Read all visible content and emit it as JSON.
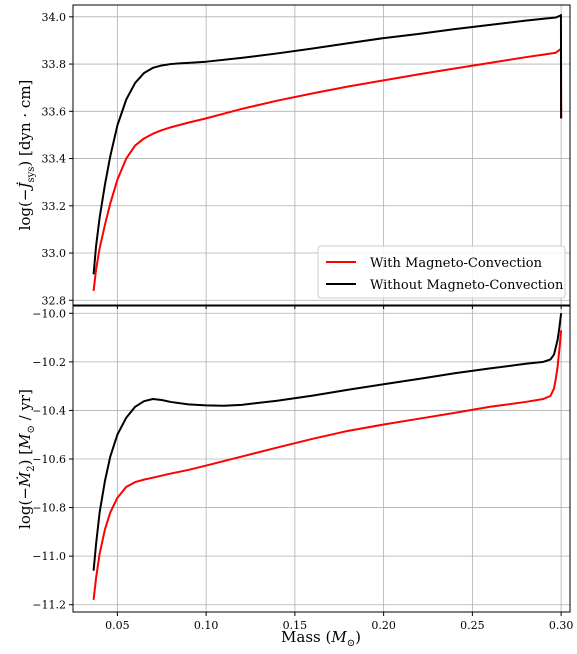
{
  "chart_data": [
    {
      "type": "line",
      "ylabel": "log(−J̇sys) [dyn·cm]",
      "ylabel_parts": {
        "pre": "log(−",
        "sym": "J̇",
        "sub": "sys",
        "post": ")  [dyn · cm]"
      },
      "xlim": [
        0.025,
        0.305
      ],
      "ylim": [
        32.78,
        34.05
      ],
      "yticks": [
        "32.8",
        "33.0",
        "33.2",
        "33.4",
        "33.6",
        "33.8",
        "34.0"
      ],
      "ytick_values": [
        32.8,
        33.0,
        33.2,
        33.4,
        33.6,
        33.8,
        34.0
      ],
      "grid": true,
      "legend_position": "lower-right",
      "series": [
        {
          "name": "With Magneto-Convection",
          "color": "#ff0000",
          "x": [
            0.0366,
            0.038,
            0.04,
            0.043,
            0.046,
            0.05,
            0.055,
            0.06,
            0.065,
            0.07,
            0.075,
            0.08,
            0.09,
            0.1,
            0.12,
            0.14,
            0.16,
            0.18,
            0.2,
            0.22,
            0.24,
            0.26,
            0.28,
            0.29,
            0.297,
            0.2995,
            0.2999,
            0.3
          ],
          "y": [
            32.84,
            32.93,
            33.02,
            33.12,
            33.21,
            33.31,
            33.4,
            33.455,
            33.485,
            33.505,
            33.52,
            33.532,
            33.552,
            33.57,
            33.61,
            33.645,
            33.676,
            33.705,
            33.731,
            33.757,
            33.781,
            33.805,
            33.829,
            33.84,
            33.848,
            33.862,
            33.865,
            33.57
          ]
        },
        {
          "name": "Without Magneto-Convection",
          "color": "#000000",
          "x": [
            0.0366,
            0.038,
            0.04,
            0.043,
            0.046,
            0.05,
            0.055,
            0.06,
            0.065,
            0.07,
            0.075,
            0.08,
            0.085,
            0.09,
            0.1,
            0.12,
            0.14,
            0.16,
            0.18,
            0.2,
            0.22,
            0.24,
            0.26,
            0.28,
            0.29,
            0.297,
            0.2995,
            0.2999,
            0.3
          ],
          "y": [
            32.91,
            33.03,
            33.15,
            33.29,
            33.41,
            33.54,
            33.65,
            33.72,
            33.762,
            33.784,
            33.794,
            33.8,
            33.803,
            33.805,
            33.81,
            33.826,
            33.845,
            33.866,
            33.888,
            33.91,
            33.928,
            33.948,
            33.966,
            33.984,
            33.992,
            33.997,
            34.005,
            34.008,
            33.57
          ]
        }
      ]
    },
    {
      "type": "line",
      "xlabel": "Mass (M⊙)",
      "xlabel_parts": {
        "pre": "Mass (",
        "sym": "M",
        "sub": "⊙",
        "post": ")"
      },
      "ylabel": "log(−Ṁ₂) [M⊙ / yr]",
      "ylabel_parts": {
        "pre": "log(−",
        "sym": "Ṁ",
        "sub": "2",
        "post": ")  [",
        "sym2": "M",
        "sub2": "⊙",
        "post2": " / yr]"
      },
      "xlim": [
        0.025,
        0.305
      ],
      "ylim": [
        -11.23,
        -9.97
      ],
      "xticks": [
        "0.05",
        "0.10",
        "0.15",
        "0.20",
        "0.25",
        "0.30"
      ],
      "xtick_values": [
        0.05,
        0.1,
        0.15,
        0.2,
        0.25,
        0.3
      ],
      "yticks": [
        "−11.2",
        "−11.0",
        "−10.8",
        "−10.6",
        "−10.4",
        "−10.2",
        "−10.0"
      ],
      "ytick_values": [
        -11.2,
        -11.0,
        -10.8,
        -10.6,
        -10.4,
        -10.2,
        -10.0
      ],
      "grid": true,
      "series": [
        {
          "name": "With Magneto-Convection",
          "color": "#ff0000",
          "x": [
            0.0366,
            0.038,
            0.04,
            0.043,
            0.046,
            0.05,
            0.055,
            0.06,
            0.065,
            0.07,
            0.08,
            0.09,
            0.1,
            0.12,
            0.14,
            0.16,
            0.18,
            0.2,
            0.22,
            0.24,
            0.26,
            0.28,
            0.29,
            0.294,
            0.296,
            0.297,
            0.298,
            0.299,
            0.2995,
            0.3
          ],
          "y": [
            -11.18,
            -11.09,
            -10.99,
            -10.89,
            -10.82,
            -10.76,
            -10.715,
            -10.695,
            -10.685,
            -10.677,
            -10.66,
            -10.645,
            -10.627,
            -10.59,
            -10.553,
            -10.517,
            -10.484,
            -10.458,
            -10.434,
            -10.41,
            -10.385,
            -10.365,
            -10.353,
            -10.34,
            -10.31,
            -10.27,
            -10.22,
            -10.15,
            -10.11,
            -10.07
          ]
        },
        {
          "name": "Without Magneto-Convection",
          "color": "#000000",
          "x": [
            0.0366,
            0.038,
            0.04,
            0.043,
            0.046,
            0.05,
            0.055,
            0.06,
            0.065,
            0.07,
            0.075,
            0.08,
            0.09,
            0.1,
            0.11,
            0.12,
            0.14,
            0.16,
            0.18,
            0.2,
            0.22,
            0.24,
            0.26,
            0.28,
            0.29,
            0.294,
            0.296,
            0.297,
            0.298,
            0.299,
            0.2995,
            0.3
          ],
          "y": [
            -11.06,
            -10.95,
            -10.82,
            -10.69,
            -10.59,
            -10.5,
            -10.43,
            -10.385,
            -10.362,
            -10.353,
            -10.357,
            -10.365,
            -10.375,
            -10.379,
            -10.381,
            -10.377,
            -10.36,
            -10.339,
            -10.315,
            -10.292,
            -10.27,
            -10.247,
            -10.227,
            -10.208,
            -10.2,
            -10.19,
            -10.17,
            -10.14,
            -10.11,
            -10.06,
            -10.03,
            -10.0
          ]
        }
      ]
    }
  ]
}
